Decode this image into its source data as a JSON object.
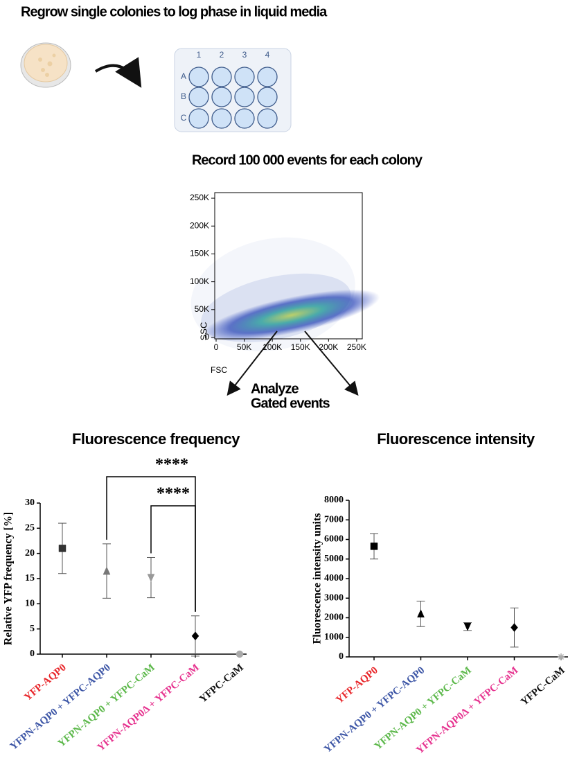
{
  "header": {
    "step1": "Regrow single colonies to log phase in liquid media",
    "plate_columns": [
      "1",
      "2",
      "3",
      "4"
    ],
    "plate_rows": [
      "A",
      "B",
      "C"
    ],
    "step2": "Record 100 000  events for each colony",
    "step3": [
      "Analyze",
      "Gated events"
    ]
  },
  "chart_data": [
    {
      "type": "density",
      "xlabel": "FSC",
      "ylabel": "SSC",
      "xlim": [
        0,
        260000
      ],
      "ylim": [
        0,
        260000
      ],
      "xticks": [
        {
          "value": 0,
          "label": "0"
        },
        {
          "value": 50000,
          "label": "50K"
        },
        {
          "value": 100000,
          "label": "100K"
        },
        {
          "value": 150000,
          "label": "150K"
        },
        {
          "value": 200000,
          "label": "200K"
        },
        {
          "value": 250000,
          "label": "250K"
        }
      ],
      "yticks": [
        {
          "value": 0,
          "label": "0"
        },
        {
          "value": 50000,
          "label": "50K"
        },
        {
          "value": 100000,
          "label": "100K"
        },
        {
          "value": 150000,
          "label": "150K"
        },
        {
          "value": 200000,
          "label": "200K"
        },
        {
          "value": 250000,
          "label": "250K"
        }
      ]
    },
    {
      "type": "errorbar",
      "title": "Fluorescence frequency",
      "ylabel": "Relative YFP frequency [%]",
      "categories": [
        "YFP-AQP0",
        "YFPN-AQP0 + YFPC-AQP0",
        "YFPN-AQP0 + YFPC-CaM",
        "YFPN-AQP0Δ + YFPC-CaM",
        "YFPC-CaM"
      ],
      "category_colors": [
        "#e8262a",
        "#3d56a6",
        "#5cb84a",
        "#e6338f",
        "#111111"
      ],
      "values": [
        21,
        16.5,
        15.2,
        3.6,
        0
      ],
      "errors": [
        5,
        5.4,
        4,
        4,
        0
      ],
      "markers": [
        "square",
        "triangle",
        "triangle-down",
        "diamond",
        "circle"
      ],
      "marker_colors": [
        "#333333",
        "#777777",
        "#999999",
        "#000000",
        "#aaaaaa"
      ],
      "ylim": [
        0,
        30
      ],
      "yticks": [
        0,
        5,
        10,
        15,
        20,
        25,
        30
      ],
      "significance": [
        {
          "from": 1,
          "to": 3,
          "label": "****"
        },
        {
          "from": 2,
          "to": 3,
          "label": "****"
        }
      ]
    },
    {
      "type": "errorbar",
      "title": "Fluorescence intensity",
      "ylabel": "Fluorescence intensity units",
      "categories": [
        "YFP-AQP0",
        "YFPN-AQP0 + YFPC-AQP0",
        "YFPN-AQP0 + YFPC-CaM",
        "YFPN-AQP0Δ + YFPC-CaM",
        "YFPC-CaM"
      ],
      "category_colors": [
        "#e8262a",
        "#3d56a6",
        "#5cb84a",
        "#e6338f",
        "#111111"
      ],
      "values": [
        5650,
        2200,
        1550,
        1500,
        0
      ],
      "errors": [
        650,
        650,
        200,
        1000,
        0
      ],
      "markers": [
        "square",
        "triangle",
        "triangle-down",
        "diamond",
        "star"
      ],
      "marker_colors": [
        "#000000",
        "#000000",
        "#000000",
        "#000000",
        "#aaaaaa"
      ],
      "ylim": [
        0,
        8000
      ],
      "yticks": [
        0,
        1000,
        2000,
        3000,
        4000,
        5000,
        6000,
        7000,
        8000
      ]
    }
  ]
}
